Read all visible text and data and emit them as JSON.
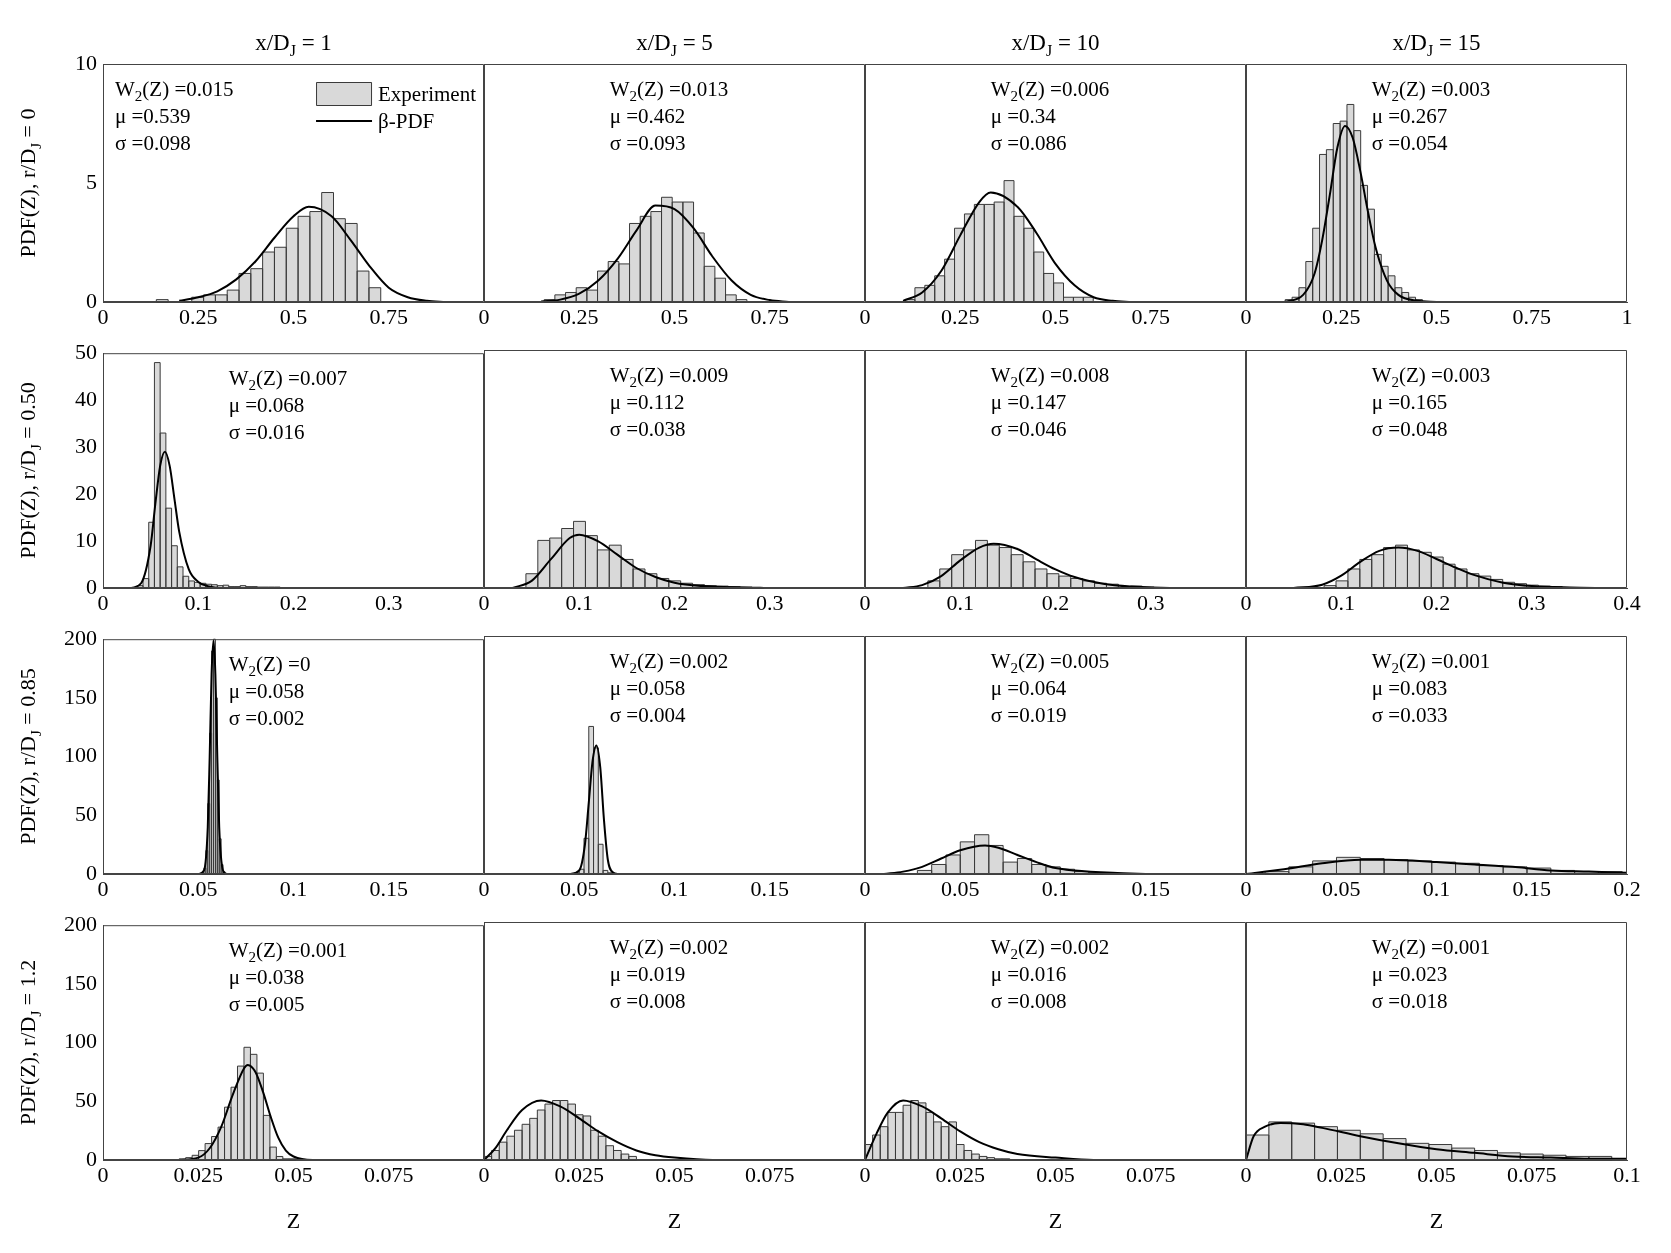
{
  "chart_data": [
    {
      "type": "histogram",
      "title": "x/D$_{J}$ = 1",
      "ylabel": "PDF(Z), r/D$_{J}$ = 0",
      "xlim": [
        0,
        1
      ],
      "xticks": [
        0,
        0.25,
        0.5,
        0.75
      ],
      "ylim": [
        0,
        10
      ],
      "yticks": [
        0,
        5,
        10
      ],
      "legend": "top right",
      "annotations": [
        "W$_{2}$(Z) =0.015",
        "μ =0.539",
        "σ =0.098"
      ],
      "series": [
        {
          "type": "histogram",
          "name": "Experiment",
          "color": "#d9d9d9",
          "bins": [
            0.14,
            0.171,
            0.202,
            0.233,
            0.264,
            0.295,
            0.326,
            0.357,
            0.388,
            0.419,
            0.45,
            0.481,
            0.512,
            0.543,
            0.574,
            0.605,
            0.636,
            0.667,
            0.698,
            0.729
          ],
          "values": [
            0.1,
            0,
            0,
            0.2,
            0.3,
            0.3,
            0.5,
            1.2,
            1.4,
            2.1,
            2.3,
            3.1,
            3.6,
            3.8,
            4.6,
            3.5,
            3.3,
            1.3,
            0.6
          ]
        },
        {
          "type": "line",
          "name": "β-PDF",
          "color": "#000000",
          "x": [
            0.2,
            0.25,
            0.3,
            0.35,
            0.4,
            0.45,
            0.5,
            0.54,
            0.6,
            0.65,
            0.7,
            0.75,
            0.8,
            0.85,
            0.9
          ],
          "values": [
            0.05,
            0.2,
            0.45,
            0.95,
            1.7,
            2.7,
            3.6,
            4.0,
            3.6,
            2.6,
            1.5,
            0.6,
            0.2,
            0.05,
            0
          ]
        }
      ]
    },
    {
      "type": "histogram",
      "title": "x/D$_{J}$ = 5",
      "xlim": [
        0,
        1
      ],
      "xticks": [
        0,
        0.25,
        0.5,
        0.75
      ],
      "ylim": [
        0,
        10
      ],
      "yticks": [
        0,
        5,
        10
      ],
      "tick_labels": "x",
      "annotations": [
        "W$_{2}$(Z) =0.013",
        "μ =0.462",
        "σ =0.093"
      ],
      "series": [
        {
          "type": "histogram",
          "color": "#d9d9d9",
          "bins": [
            0.158,
            0.186,
            0.214,
            0.242,
            0.27,
            0.298,
            0.326,
            0.354,
            0.382,
            0.41,
            0.438,
            0.466,
            0.494,
            0.522,
            0.55,
            0.578,
            0.606,
            0.634,
            0.662,
            0.69
          ],
          "values": [
            0.1,
            0.3,
            0.4,
            0.6,
            0.5,
            1.3,
            1.7,
            1.6,
            3.3,
            3.6,
            3.8,
            4.4,
            4.2,
            4.2,
            2.9,
            1.5,
            1.0,
            0.3,
            0.1
          ]
        },
        {
          "type": "line",
          "color": "#000000",
          "x": [
            0.15,
            0.2,
            0.25,
            0.3,
            0.35,
            0.4,
            0.45,
            0.5,
            0.55,
            0.6,
            0.65,
            0.7,
            0.75,
            0.8
          ],
          "values": [
            0.02,
            0.1,
            0.35,
            0.9,
            1.8,
            3.0,
            4.05,
            3.9,
            3.1,
            1.9,
            0.9,
            0.3,
            0.08,
            0
          ]
        }
      ]
    },
    {
      "type": "histogram",
      "title": "x/D$_{J}$ = 10",
      "xlim": [
        0,
        1
      ],
      "xticks": [
        0,
        0.25,
        0.5,
        0.75
      ],
      "ylim": [
        0,
        10
      ],
      "yticks": [
        0,
        5,
        10
      ],
      "tick_labels": "x",
      "annotations": [
        "W$_{2}$(Z) =0.006",
        "μ =0.34",
        "σ =0.086"
      ],
      "series": [
        {
          "type": "histogram",
          "color": "#d9d9d9",
          "bins": [
            0.105,
            0.131,
            0.157,
            0.183,
            0.209,
            0.235,
            0.261,
            0.287,
            0.313,
            0.339,
            0.365,
            0.391,
            0.417,
            0.443,
            0.469,
            0.495,
            0.521,
            0.547,
            0.573,
            0.599
          ],
          "values": [
            0.1,
            0.6,
            0.7,
            1.1,
            1.8,
            3.1,
            3.7,
            4.1,
            4.1,
            4.2,
            5.1,
            3.6,
            3.1,
            2.1,
            1.2,
            0.8,
            0.2,
            0.2,
            0.2
          ]
        },
        {
          "type": "line",
          "color": "#000000",
          "x": [
            0.1,
            0.15,
            0.2,
            0.25,
            0.3,
            0.33,
            0.4,
            0.45,
            0.5,
            0.55,
            0.6,
            0.65,
            0.7
          ],
          "values": [
            0.05,
            0.4,
            1.3,
            2.8,
            4.2,
            4.6,
            4.0,
            2.9,
            1.6,
            0.7,
            0.2,
            0.05,
            0
          ]
        }
      ]
    },
    {
      "type": "histogram",
      "title": "x/D$_{J}$ = 15",
      "xlim": [
        0,
        1
      ],
      "xticks": [
        0,
        0.25,
        0.5,
        0.75,
        1
      ],
      "ylim": [
        0,
        10
      ],
      "yticks": [
        0,
        5,
        10
      ],
      "tick_labels": "x",
      "annotations": [
        "W$_{2}$(Z) =0.003",
        "μ =0.267",
        "σ =0.054"
      ],
      "series": [
        {
          "type": "histogram",
          "color": "#d9d9d9",
          "bins": [
            0.103,
            0.121,
            0.139,
            0.157,
            0.175,
            0.193,
            0.211,
            0.229,
            0.247,
            0.265,
            0.283,
            0.301,
            0.319,
            0.337,
            0.355,
            0.373,
            0.391,
            0.409,
            0.427,
            0.445,
            0.463
          ],
          "values": [
            0.1,
            0.2,
            0.6,
            1.7,
            3.1,
            6.2,
            6.4,
            7.5,
            7.6,
            8.3,
            7.2,
            4.9,
            3.9,
            2.0,
            1.5,
            1.1,
            0.6,
            0.4,
            0.2,
            0.1
          ]
        },
        {
          "type": "line",
          "color": "#000000",
          "x": [
            0.1,
            0.15,
            0.18,
            0.2,
            0.22,
            0.24,
            0.26,
            0.28,
            0.3,
            0.32,
            0.34,
            0.37,
            0.4,
            0.45,
            0.5
          ],
          "values": [
            0,
            0.3,
            1.2,
            2.6,
            4.5,
            6.5,
            7.4,
            6.9,
            5.5,
            3.8,
            2.3,
            0.9,
            0.3,
            0.05,
            0
          ]
        }
      ]
    },
    {
      "type": "histogram",
      "ylabel": "PDF(Z), r/D$_{J}$ = 0.50",
      "xlim": [
        0,
        0.4
      ],
      "xticks": [
        0,
        0.1,
        0.2,
        0.3
      ],
      "ylim": [
        0,
        50
      ],
      "yticks": [
        0,
        10,
        20,
        30,
        40,
        50
      ],
      "annotations": [
        "W$_{2}$(Z) =0.007",
        "μ =0.068",
        "σ =0.016"
      ],
      "series": [
        {
          "type": "histogram",
          "color": "#d9d9d9",
          "bins": [
            0.036,
            0.042,
            0.048,
            0.054,
            0.06,
            0.066,
            0.072,
            0.078,
            0.084,
            0.09,
            0.096,
            0.102,
            0.108,
            0.114,
            0.12,
            0.126,
            0.132,
            0.138,
            0.144,
            0.15,
            0.156,
            0.162,
            0.168,
            0.174,
            0.18,
            0.186
          ],
          "values": [
            0.5,
            2,
            14,
            48,
            33,
            17,
            9,
            4.5,
            2.5,
            1.5,
            1.2,
            1,
            0.8,
            0.7,
            0.5,
            0.6,
            0.3,
            0.3,
            0.5,
            0.3,
            0.3,
            0.2,
            0.2,
            0.2,
            0.2
          ]
        },
        {
          "type": "line",
          "color": "#000000",
          "x": [
            0.03,
            0.04,
            0.05,
            0.055,
            0.06,
            0.065,
            0.07,
            0.075,
            0.08,
            0.09,
            0.1,
            0.11,
            0.13,
            0.15
          ],
          "values": [
            0,
            1,
            9,
            18,
            26,
            29,
            26,
            19,
            12,
            4,
            1.3,
            0.4,
            0,
            0
          ]
        }
      ]
    },
    {
      "type": "histogram",
      "xlim": [
        0,
        0.4
      ],
      "xticks": [
        0,
        0.1,
        0.2,
        0.3
      ],
      "ylim": [
        0,
        50
      ],
      "yticks": [
        0,
        10,
        20,
        30,
        40,
        50
      ],
      "tick_labels": "x",
      "annotations": [
        "W$_{2}$(Z) =0.009",
        "μ =0.112",
        "σ =0.038"
      ],
      "series": [
        {
          "type": "histogram",
          "color": "#d9d9d9",
          "bins": [
            0.044,
            0.0565,
            0.069,
            0.0815,
            0.094,
            0.1065,
            0.119,
            0.1315,
            0.144,
            0.1565,
            0.169,
            0.1815,
            0.194,
            0.2065,
            0.219,
            0.2315,
            0.244,
            0.2565,
            0.269,
            0.2815,
            0.294
          ],
          "values": [
            3,
            10,
            10.5,
            12.5,
            14,
            11,
            8,
            9,
            6,
            4,
            3,
            2,
            1.5,
            1,
            0.7,
            0.5,
            0.4,
            0.3,
            0.2,
            0.1
          ]
        },
        {
          "type": "line",
          "color": "#000000",
          "x": [
            0.03,
            0.05,
            0.07,
            0.09,
            0.1,
            0.12,
            0.14,
            0.16,
            0.18,
            0.2,
            0.23,
            0.27,
            0.3
          ],
          "values": [
            0,
            1.5,
            6,
            10.5,
            11.2,
            9.8,
            7,
            4.2,
            2.3,
            1.1,
            0.4,
            0.1,
            0
          ]
        }
      ]
    },
    {
      "type": "histogram",
      "xlim": [
        0,
        0.4
      ],
      "xticks": [
        0,
        0.1,
        0.2,
        0.3
      ],
      "ylim": [
        0,
        50
      ],
      "yticks": [
        0,
        10,
        20,
        30,
        40,
        50
      ],
      "tick_labels": "x",
      "annotations": [
        "W$_{2}$(Z) =0.008",
        "μ =0.147",
        "σ =0.046"
      ],
      "series": [
        {
          "type": "histogram",
          "color": "#d9d9d9",
          "bins": [
            0.066,
            0.0785,
            0.091,
            0.1035,
            0.116,
            0.1285,
            0.141,
            0.1535,
            0.166,
            0.1785,
            0.191,
            0.2035,
            0.216,
            0.2285,
            0.241,
            0.2535,
            0.266,
            0.2785,
            0.291,
            0.3035
          ],
          "values": [
            1.5,
            4,
            7,
            8,
            10,
            9,
            8.5,
            7,
            5.5,
            4,
            3,
            2.5,
            2,
            1.5,
            1,
            0.8,
            null,
            0.4,
            0.2
          ]
        },
        {
          "type": "line",
          "color": "#000000",
          "x": [
            0.04,
            0.06,
            0.08,
            0.1,
            0.12,
            0.135,
            0.16,
            0.18,
            0.2,
            0.22,
            0.25,
            0.28,
            0.32,
            0.35
          ],
          "values": [
            0,
            0.6,
            2.5,
            5.8,
            8.5,
            9.3,
            8.2,
            6,
            3.9,
            2.3,
            0.9,
            0.3,
            0,
            0
          ]
        }
      ]
    },
    {
      "type": "histogram",
      "xlim": [
        0,
        0.4
      ],
      "xticks": [
        0,
        0.1,
        0.2,
        0.3,
        0.4
      ],
      "ylim": [
        0,
        50
      ],
      "yticks": [
        0,
        10,
        20,
        30,
        40,
        50
      ],
      "tick_labels": "x",
      "annotations": [
        "W$_{2}$(Z) =0.003",
        "μ =0.165",
        "σ =0.048"
      ],
      "series": [
        {
          "type": "histogram",
          "color": "#d9d9d9",
          "bins": [
            0.082,
            0.0945,
            0.107,
            0.1195,
            0.132,
            0.1445,
            0.157,
            0.1695,
            0.182,
            0.1945,
            0.207,
            0.2195,
            0.232,
            0.2445,
            0.257,
            0.2695,
            0.282,
            0.2945,
            0.307,
            0.3195,
            0.332
          ],
          "values": [
            0.5,
            1.5,
            4,
            6,
            7,
            8.5,
            9,
            8,
            7.5,
            6.5,
            5,
            4,
            3,
            2.5,
            1.8,
            1.2,
            0.9,
            0.6,
            0.4,
            0.3
          ]
        },
        {
          "type": "line",
          "color": "#000000",
          "x": [
            0.05,
            0.08,
            0.1,
            0.12,
            0.14,
            0.16,
            0.18,
            0.2,
            0.22,
            0.24,
            0.27,
            0.3,
            0.34,
            0.38
          ],
          "values": [
            0,
            0.7,
            2.6,
            5.5,
            7.8,
            8.5,
            7.8,
            6.1,
            4.3,
            2.7,
            1.1,
            0.4,
            0.1,
            0
          ]
        }
      ]
    },
    {
      "type": "histogram",
      "ylabel": "PDF(Z), r/D$_{J}$ = 0.85",
      "xlim": [
        0,
        0.2
      ],
      "xticks": [
        0,
        0.05,
        0.1,
        0.15
      ],
      "ylim": [
        0,
        200
      ],
      "yticks": [
        0,
        50,
        100,
        150,
        200
      ],
      "annotations": [
        "W$_{2}$(Z) =0",
        "μ =0.058",
        "σ =0.002"
      ],
      "series": [
        {
          "type": "histogram",
          "color": "#d9d9d9",
          "bins": [
            0.052,
            0.053,
            0.054,
            0.055,
            0.056,
            0.057,
            0.058,
            0.059,
            0.06,
            0.061,
            0.062,
            0.063,
            0.064
          ],
          "values": [
            1,
            5,
            20,
            60,
            120,
            190,
            200,
            150,
            80,
            30,
            8,
            2
          ]
        },
        {
          "type": "line",
          "color": "#000000",
          "x": [
            0.05,
            0.053,
            0.055,
            0.056,
            0.057,
            0.058,
            0.059,
            0.06,
            0.061,
            0.063,
            0.065
          ],
          "values": [
            0,
            3,
            40,
            100,
            170,
            199,
            170,
            100,
            40,
            3,
            0
          ]
        }
      ]
    },
    {
      "type": "histogram",
      "xlim": [
        0,
        0.2
      ],
      "xticks": [
        0,
        0.05,
        0.1,
        0.15
      ],
      "ylim": [
        0,
        200
      ],
      "yticks": [
        0,
        50,
        100,
        150,
        200
      ],
      "tick_labels": "x",
      "annotations": [
        "W$_{2}$(Z) =0.002",
        "μ =0.058",
        "σ =0.004"
      ],
      "series": [
        {
          "type": "histogram",
          "color": "#d9d9d9",
          "bins": [
            0.0475,
            0.05,
            0.0525,
            0.055,
            0.0575,
            0.06,
            0.0625,
            0.065,
            0.0675
          ],
          "values": [
            1,
            4,
            30,
            124,
            106,
            25,
            3,
            1
          ]
        },
        {
          "type": "line",
          "color": "#000000",
          "x": [
            0.045,
            0.05,
            0.053,
            0.055,
            0.057,
            0.059,
            0.061,
            0.063,
            0.065,
            0.068,
            0.07
          ],
          "values": [
            0,
            3,
            25,
            60,
            95,
            108,
            90,
            45,
            12,
            1,
            0
          ]
        }
      ]
    },
    {
      "type": "histogram",
      "xlim": [
        0,
        0.2
      ],
      "xticks": [
        0,
        0.05,
        0.1,
        0.15
      ],
      "ylim": [
        0,
        200
      ],
      "yticks": [
        0,
        50,
        100,
        150,
        200
      ],
      "tick_labels": "x",
      "annotations": [
        "W$_{2}$(Z) =0.005",
        "μ =0.064",
        "σ =0.019"
      ],
      "series": [
        {
          "type": "histogram",
          "color": "#d9d9d9",
          "bins": [
            0.0275,
            0.035,
            0.0425,
            0.05,
            0.0575,
            0.065,
            0.0725,
            0.08,
            0.0875,
            0.095,
            0.1025,
            0.11,
            0.1175,
            0.125
          ],
          "values": [
            3,
            8,
            16,
            27,
            33,
            24,
            10,
            13,
            8,
            6,
            4,
            2,
            1
          ]
        },
        {
          "type": "line",
          "color": "#000000",
          "x": [
            0.01,
            0.02,
            0.03,
            0.04,
            0.05,
            0.063,
            0.07,
            0.08,
            0.09,
            0.1,
            0.11,
            0.13,
            0.15
          ],
          "values": [
            0,
            2,
            6,
            13,
            20,
            24,
            22,
            16,
            10,
            5,
            3,
            1,
            0
          ]
        }
      ]
    },
    {
      "type": "histogram",
      "xlim": [
        0,
        0.2
      ],
      "xticks": [
        0,
        0.05,
        0.1,
        0.15,
        0.2
      ],
      "ylim": [
        0,
        200
      ],
      "yticks": [
        0,
        50,
        100,
        150,
        200
      ],
      "tick_labels": "x",
      "annotations": [
        "W$_{2}$(Z) =0.001",
        "μ =0.083",
        "σ =0.033"
      ],
      "series": [
        {
          "type": "histogram",
          "color": "#d9d9d9",
          "bins": [
            0.01,
            0.0225,
            0.035,
            0.0475,
            0.06,
            0.0725,
            0.085,
            0.0975,
            0.11,
            0.1225,
            0.135,
            0.1475,
            0.16,
            0.1725,
            0.185,
            0.1975
          ],
          "values": [
            2,
            6,
            11,
            14,
            13,
            12,
            11,
            10,
            9,
            7,
            6,
            5,
            3,
            2,
            2
          ]
        },
        {
          "type": "line",
          "color": "#000000",
          "x": [
            0,
            0.02,
            0.04,
            0.06,
            0.075,
            0.1,
            0.12,
            0.14,
            0.16,
            0.18,
            0.2
          ],
          "values": [
            0,
            4,
            9,
            12,
            12,
            10,
            8,
            6,
            3,
            2,
            1
          ]
        }
      ]
    },
    {
      "type": "histogram",
      "ylabel": "PDF(Z), r/D$_{J}$ = 1.2",
      "xlabel": "Z",
      "xlim": [
        0,
        0.1
      ],
      "xticks": [
        0,
        0.025,
        0.05,
        0.075
      ],
      "ylim": [
        0,
        200
      ],
      "yticks": [
        0,
        50,
        100,
        150,
        200
      ],
      "annotations": [
        "W$_{2}$(Z) =0.001",
        "μ =0.038",
        "σ =0.005"
      ],
      "series": [
        {
          "type": "histogram",
          "color": "#d9d9d9",
          "bins": [
            0.02,
            0.0217,
            0.0234,
            0.0251,
            0.0268,
            0.0285,
            0.0302,
            0.0319,
            0.0336,
            0.0353,
            0.037,
            0.0387,
            0.0404,
            0.0421,
            0.0438,
            0.0455,
            0.0472,
            0.0489,
            0.0506,
            0.0523,
            0.054
          ],
          "values": [
            1,
            2,
            4,
            8,
            14,
            20,
            28,
            45,
            62,
            80,
            96,
            90,
            74,
            38,
            11,
            3,
            1,
            1,
            0,
            0
          ]
        },
        {
          "type": "line",
          "color": "#000000",
          "x": [
            0.02,
            0.025,
            0.028,
            0.031,
            0.034,
            0.037,
            0.038,
            0.04,
            0.042,
            0.044,
            0.046,
            0.048,
            0.05,
            0.055,
            0.06
          ],
          "values": [
            0,
            2,
            10,
            28,
            55,
            78,
            81,
            75,
            58,
            37,
            19,
            8,
            3,
            0,
            0
          ]
        }
      ]
    },
    {
      "type": "histogram",
      "xlabel": "Z",
      "xlim": [
        0,
        0.1
      ],
      "xticks": [
        0,
        0.025,
        0.05,
        0.075
      ],
      "ylim": [
        0,
        200
      ],
      "yticks": [
        0,
        50,
        100,
        150,
        200
      ],
      "tick_labels": "x",
      "annotations": [
        "W$_{2}$(Z) =0.002",
        "μ =0.019",
        "σ =0.008"
      ],
      "series": [
        {
          "type": "histogram",
          "color": "#d9d9d9",
          "bins": [
            0,
            0.002,
            0.004,
            0.006,
            0.008,
            0.01,
            0.012,
            0.014,
            0.016,
            0.018,
            0.02,
            0.022,
            0.024,
            0.026,
            0.028,
            0.03,
            0.032,
            0.034,
            0.036,
            0.038,
            0.04
          ],
          "values": [
            3,
            8,
            15,
            20,
            25,
            30,
            35,
            42,
            47,
            50,
            50,
            47,
            38,
            37,
            25,
            20,
            12,
            8,
            5,
            3
          ]
        },
        {
          "type": "line",
          "color": "#000000",
          "x": [
            0,
            0.003,
            0.006,
            0.01,
            0.015,
            0.02,
            0.025,
            0.03,
            0.035,
            0.04,
            0.045,
            0.05,
            0.06,
            0.07
          ],
          "values": [
            0,
            10,
            25,
            42,
            50,
            45,
            35,
            24,
            15,
            8,
            4,
            2,
            0,
            0
          ]
        }
      ]
    },
    {
      "type": "histogram",
      "xlabel": "Z",
      "xlim": [
        0,
        0.1
      ],
      "xticks": [
        0,
        0.025,
        0.05,
        0.075
      ],
      "ylim": [
        0,
        200
      ],
      "yticks": [
        0,
        50,
        100,
        150,
        200
      ],
      "tick_labels": "x",
      "annotations": [
        "W$_{2}$(Z) =0.002",
        "μ =0.016",
        "σ =0.008"
      ],
      "series": [
        {
          "type": "histogram",
          "color": "#d9d9d9",
          "bins": [
            0,
            0.002,
            0.004,
            0.006,
            0.008,
            0.01,
            0.012,
            0.014,
            0.016,
            0.018,
            0.02,
            0.022,
            0.024,
            0.026,
            0.028,
            0.03,
            0.032,
            0.034,
            0.036,
            0.038
          ],
          "values": [
            13,
            21,
            28,
            40,
            40,
            46,
            50,
            48,
            40,
            32,
            28,
            32,
            13,
            8,
            5,
            3,
            2,
            1,
            1
          ]
        },
        {
          "type": "line",
          "color": "#000000",
          "x": [
            0,
            0.003,
            0.006,
            0.01,
            0.015,
            0.02,
            0.025,
            0.03,
            0.035,
            0.04,
            0.05,
            0.06,
            0.07
          ],
          "values": [
            0,
            22,
            40,
            50,
            45,
            35,
            24,
            15,
            9,
            5,
            2,
            0,
            0
          ]
        }
      ]
    },
    {
      "type": "histogram",
      "xlabel": "Z",
      "xlim": [
        0,
        0.1
      ],
      "xticks": [
        0,
        0.025,
        0.05,
        0.075,
        0.1
      ],
      "ylim": [
        0,
        200
      ],
      "yticks": [
        0,
        50,
        100,
        150,
        200
      ],
      "tick_labels": "x",
      "annotations": [
        "W$_{2}$(Z) =0.001",
        "μ =0.023",
        "σ =0.018"
      ],
      "series": [
        {
          "type": "histogram",
          "color": "#d9d9d9",
          "bins": [
            0,
            0.006,
            0.012,
            0.018,
            0.024,
            0.03,
            0.036,
            0.042,
            0.048,
            0.054,
            0.06,
            0.066,
            0.072,
            0.078,
            0.084,
            0.09,
            0.096
          ],
          "values": [
            21,
            32,
            31,
            28,
            25,
            22,
            18,
            14,
            13,
            10,
            8,
            6,
            5,
            4,
            3,
            3
          ]
        },
        {
          "type": "line",
          "color": "#000000",
          "x": [
            0,
            0.002,
            0.005,
            0.009,
            0.015,
            0.02,
            0.03,
            0.04,
            0.05,
            0.06,
            0.07,
            0.08,
            0.09,
            0.1
          ],
          "values": [
            0,
            20,
            28,
            31,
            30,
            27,
            20,
            14,
            9,
            6,
            3,
            2,
            1,
            1
          ]
        }
      ]
    }
  ]
}
